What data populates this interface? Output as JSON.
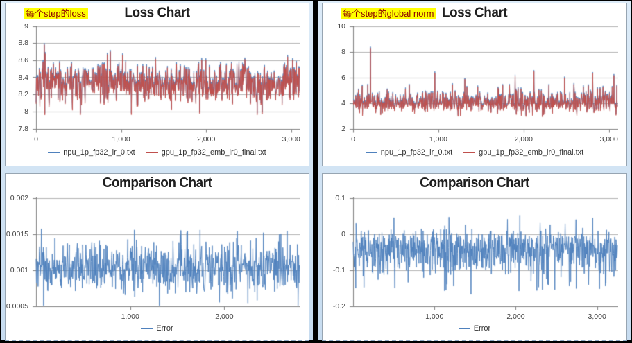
{
  "page": {
    "background": "#000000",
    "panel_background": "#ffffff",
    "workbook_background_top": "#dcebf8",
    "workbook_background_bottom": "#c7dcf0",
    "accent_blue": "#4F81BD",
    "accent_red": "#C0504D",
    "highlight_yellow": "#ffff00",
    "annotation_text_color": "#8B0000"
  },
  "chart_data": [
    {
      "type": "line",
      "position": "top-left",
      "title": "Loss Chart",
      "annotation": {
        "text": "每个step的loss"
      },
      "xlabel": "",
      "ylabel": "",
      "xlim": [
        0,
        3100
      ],
      "ylim": [
        7.8,
        9
      ],
      "grid": true,
      "legend_position": "bottom",
      "xticks": [
        {
          "v": 0,
          "label": "0"
        },
        {
          "v": 1000,
          "label": "1,000"
        },
        {
          "v": 2000,
          "label": "2,000"
        },
        {
          "v": 3000,
          "label": "3,000"
        }
      ],
      "yticks": [
        {
          "v": 9,
          "label": "9"
        },
        {
          "v": 8.8,
          "label": "8.8"
        },
        {
          "v": 8.6,
          "label": "8.6"
        },
        {
          "v": 8.4,
          "label": "8.4"
        },
        {
          "v": 8.2,
          "label": "8.2"
        },
        {
          "v": 8,
          "label": "8"
        },
        {
          "v": 7.8,
          "label": "7.8"
        }
      ],
      "noise": {
        "seed": 7,
        "points": 900,
        "base": 8.33,
        "amp_up": 0.27,
        "amp_down": 0.26,
        "spike_prob": 0.03
      },
      "series": [
        {
          "name": "npu_1p_fp32_lr_0.txt",
          "color": "#4F81BD",
          "delta": 0.02
        },
        {
          "name": "gpu_1p_fp32_emb_lr0_final.txt",
          "color": "#C0504D",
          "delta": 0
        }
      ],
      "spikes": [
        {
          "x": 95,
          "y": 8.78
        },
        {
          "x": 520,
          "y": 7.96
        },
        {
          "x": 2960,
          "y": 8.64
        }
      ]
    },
    {
      "type": "line",
      "position": "top-right",
      "title": "Loss Chart",
      "annotation": {
        "text": "每个step的global norm"
      },
      "xlabel": "",
      "ylabel": "",
      "xlim": [
        0,
        3100
      ],
      "ylim": [
        2,
        10
      ],
      "grid": true,
      "legend_position": "bottom",
      "xticks": [
        {
          "v": 0,
          "label": "0"
        },
        {
          "v": 1000,
          "label": "1,000"
        },
        {
          "v": 2000,
          "label": "2,000"
        },
        {
          "v": 3000,
          "label": "3,000"
        }
      ],
      "yticks": [
        {
          "v": 10,
          "label": "10"
        },
        {
          "v": 8,
          "label": "8"
        },
        {
          "v": 6,
          "label": "6"
        },
        {
          "v": 4,
          "label": "4"
        },
        {
          "v": 2,
          "label": "2"
        }
      ],
      "noise": {
        "seed": 21,
        "points": 900,
        "base": 3.95,
        "amp_up": 1.05,
        "amp_down": 0.72,
        "spike_prob": 0.05
      },
      "series": [
        {
          "name": "npu_1p_fp32_lr_0.txt",
          "color": "#4F81BD",
          "delta": 0.1
        },
        {
          "name": "gpu_1p_fp32_emb_lr0_final.txt",
          "color": "#C0504D",
          "delta": 0
        }
      ],
      "spikes": [
        {
          "x": 205,
          "y": 8.28
        },
        {
          "x": 960,
          "y": 6.35
        },
        {
          "x": 1310,
          "y": 5.85
        },
        {
          "x": 1900,
          "y": 6.1
        },
        {
          "x": 2120,
          "y": 6.45
        },
        {
          "x": 2480,
          "y": 5.95
        },
        {
          "x": 2810,
          "y": 6.3
        },
        {
          "x": 3060,
          "y": 6.15
        }
      ]
    },
    {
      "type": "line",
      "position": "bottom-left",
      "title": "Comparison Chart",
      "xlabel": "",
      "ylabel": "",
      "xlim": [
        0,
        2800
      ],
      "ylim": [
        0.0005,
        0.002
      ],
      "grid": true,
      "legend_position": "bottom",
      "xticks": [
        {
          "v": 1000,
          "label": "1,000"
        },
        {
          "v": 2000,
          "label": "2,000"
        }
      ],
      "yticks": [
        {
          "v": 0.002,
          "label": "0.002"
        },
        {
          "v": 0.0015,
          "label": "0.0015"
        },
        {
          "v": 0.001,
          "label": "0.001"
        },
        {
          "v": 0.0005,
          "label": "0.0005"
        }
      ],
      "noise": {
        "seed": 33,
        "points": 800,
        "base": 0.00104,
        "amp_up": 0.00038,
        "amp_down": 0.00042,
        "spike_prob": 0.03
      },
      "series": [
        {
          "name": "Error",
          "color": "#4F81BD",
          "delta": 0
        }
      ],
      "spikes": [
        {
          "x": 55,
          "y": 0.00157
        },
        {
          "x": 1600,
          "y": 0.00152
        },
        {
          "x": 2250,
          "y": 0.00054
        },
        {
          "x": 2600,
          "y": 0.0015
        }
      ]
    },
    {
      "type": "line",
      "position": "bottom-right",
      "title": "Comparison Chart",
      "xlabel": "",
      "ylabel": "",
      "xlim": [
        0,
        3250
      ],
      "ylim": [
        -0.2,
        0.1
      ],
      "grid": true,
      "legend_position": "bottom",
      "xticks": [
        {
          "v": 1000,
          "label": "1,000"
        },
        {
          "v": 2000,
          "label": "2,000"
        },
        {
          "v": 3000,
          "label": "3,000"
        }
      ],
      "yticks": [
        {
          "v": 0.1,
          "label": "0.1"
        },
        {
          "v": 0,
          "label": "0"
        },
        {
          "v": -0.1,
          "label": "-0.1"
        },
        {
          "v": -0.2,
          "label": "-0.2"
        }
      ],
      "noise": {
        "seed": 55,
        "points": 900,
        "base": -0.042,
        "amp_up": 0.062,
        "amp_down": 0.082,
        "spike_prob": 0.04
      },
      "series": [
        {
          "name": "Error",
          "color": "#4F81BD",
          "delta": 0
        }
      ],
      "spikes": [
        {
          "x": 1450,
          "y": -0.168
        },
        {
          "x": 2050,
          "y": 0.052
        },
        {
          "x": 2480,
          "y": -0.155
        },
        {
          "x": 3100,
          "y": -0.145
        }
      ]
    }
  ]
}
